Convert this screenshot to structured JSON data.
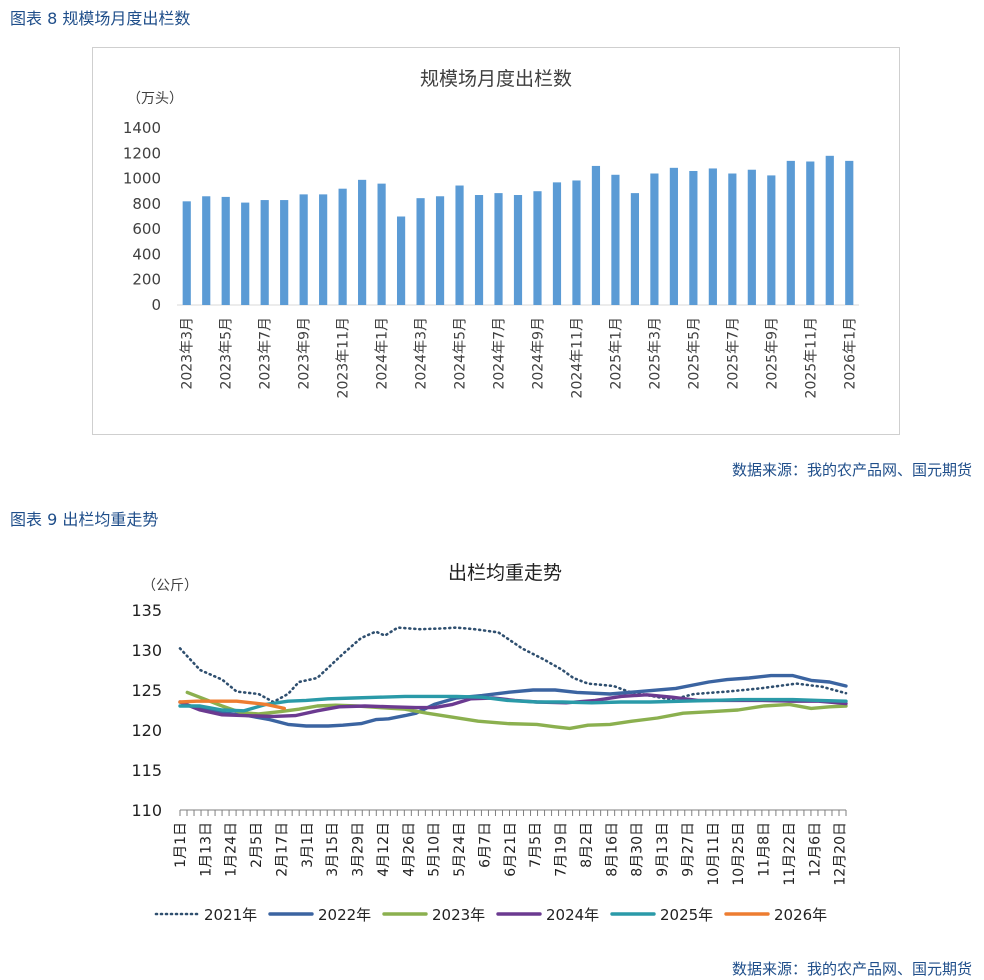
{
  "fig8": {
    "heading": "图表 8  规模场月度出栏数",
    "source": "数据来源：我的农产品网、国元期货"
  },
  "fig9": {
    "heading": "图表 9  出栏均重走势",
    "source": "数据来源：我的农产品网、国元期货"
  },
  "chart_data": [
    {
      "type": "bar",
      "title": "规模场月度出栏数",
      "ylabel": "（万头）",
      "ylim": [
        0,
        1400
      ],
      "yticks": [
        "0",
        "200",
        "400",
        "600",
        "800",
        "1000",
        "1200",
        "1400"
      ],
      "grid": false,
      "legend": "none",
      "color": "#5b9bd5",
      "categories": [
        "2023年3月",
        "2023年4月",
        "2023年5月",
        "2023年6月",
        "2023年7月",
        "2023年8月",
        "2023年9月",
        "2023年10月",
        "2023年11月",
        "2023年12月",
        "2024年1月",
        "2024年2月",
        "2024年3月",
        "2024年4月",
        "2024年5月",
        "2024年6月",
        "2024年7月",
        "2024年8月",
        "2024年9月",
        "2024年10月",
        "2024年11月",
        "2024年12月",
        "2025年1月",
        "2025年2月",
        "2025年3月",
        "2025年4月",
        "2025年5月",
        "2025年6月",
        "2025年7月",
        "2025年8月",
        "2025年9月",
        "2025年10月",
        "2025年11月",
        "2025年12月",
        "2026年1月"
      ],
      "label_categories": [
        "2023年3月",
        "2023年5月",
        "2023年7月",
        "2023年9月",
        "2023年11月",
        "2024年1月",
        "2024年3月",
        "2024年5月",
        "2024年7月",
        "2024年9月",
        "2024年11月",
        "2025年1月",
        "2025年3月",
        "2025年5月",
        "2025年7月",
        "2025年9月",
        "2025年11月",
        "2026年1月"
      ],
      "values": [
        820,
        860,
        855,
        810,
        830,
        830,
        875,
        875,
        920,
        990,
        960,
        700,
        845,
        860,
        945,
        870,
        885,
        870,
        900,
        970,
        985,
        1100,
        1030,
        885,
        1040,
        1085,
        1060,
        1080,
        1040,
        1070,
        1025,
        1140,
        1135,
        1180,
        1140
      ]
    },
    {
      "type": "line",
      "title": "出栏均重走势",
      "ylabel": "（公斤）",
      "ylim": [
        110,
        135
      ],
      "yticks": [
        "110",
        "115",
        "120",
        "125",
        "130",
        "135"
      ],
      "grid": false,
      "legend": "bottom",
      "xticks": [
        "1月1日",
        "1月13日",
        "1月24日",
        "2月5日",
        "2月17日",
        "3月1日",
        "3月15日",
        "3月29日",
        "4月12日",
        "4月26日",
        "5月10日",
        "5月24日",
        "6月7日",
        "6月21日",
        "7月5日",
        "7月19日",
        "8月2日",
        "8月16日",
        "8月30日",
        "9月13日",
        "9月27日",
        "10月11日",
        "10月25日",
        "11月8日",
        "11月22日",
        "12月6日",
        "12月20日"
      ],
      "x_range_days": [
        1,
        365
      ],
      "series": [
        {
          "name": "2021年",
          "color": "#2f4f6f",
          "dashed": true,
          "points": [
            [
              1,
              130.2
            ],
            [
              12,
              127.5
            ],
            [
              24,
              126.3
            ],
            [
              32,
              124.8
            ],
            [
              44,
              124.5
            ],
            [
              52,
              123.5
            ],
            [
              60,
              124.5
            ],
            [
              66,
              126
            ],
            [
              76,
              126.5
            ],
            [
              90,
              129.5
            ],
            [
              100,
              131.5
            ],
            [
              108,
              132.3
            ],
            [
              113,
              131.8
            ],
            [
              120,
              132.8
            ],
            [
              132,
              132.6
            ],
            [
              145,
              132.7
            ],
            [
              152,
              132.8
            ],
            [
              162,
              132.6
            ],
            [
              175,
              132.2
            ],
            [
              188,
              130.2
            ],
            [
              200,
              128.8
            ],
            [
              210,
              127.5
            ],
            [
              216,
              126.5
            ],
            [
              224,
              125.8
            ],
            [
              238,
              125.5
            ],
            [
              246,
              124.8
            ],
            [
              260,
              124.2
            ],
            [
              270,
              123.8
            ],
            [
              282,
              124.5
            ],
            [
              300,
              124.8
            ],
            [
              318,
              125.2
            ],
            [
              338,
              125.8
            ],
            [
              352,
              125.4
            ],
            [
              365,
              124.6
            ]
          ]
        },
        {
          "name": "2022年",
          "color": "#3b64a1",
          "dashed": false,
          "points": [
            [
              3,
              123.2
            ],
            [
              14,
              122.6
            ],
            [
              26,
              122.1
            ],
            [
              38,
              121.8
            ],
            [
              50,
              121.3
            ],
            [
              60,
              120.7
            ],
            [
              70,
              120.5
            ],
            [
              82,
              120.5
            ],
            [
              90,
              120.6
            ],
            [
              100,
              120.8
            ],
            [
              108,
              121.3
            ],
            [
              115,
              121.4
            ],
            [
              124,
              121.8
            ],
            [
              130,
              122.1
            ],
            [
              140,
              123.2
            ],
            [
              152,
              124
            ],
            [
              166,
              124.3
            ],
            [
              180,
              124.7
            ],
            [
              194,
              125
            ],
            [
              206,
              125
            ],
            [
              218,
              124.7
            ],
            [
              236,
              124.5
            ],
            [
              252,
              124.8
            ],
            [
              272,
              125.2
            ],
            [
              290,
              126
            ],
            [
              300,
              126.3
            ],
            [
              312,
              126.5
            ],
            [
              324,
              126.8
            ],
            [
              336,
              126.8
            ],
            [
              346,
              126.2
            ],
            [
              356,
              126
            ],
            [
              365,
              125.5
            ]
          ]
        },
        {
          "name": "2023年",
          "color": "#8bb04f",
          "dashed": false,
          "points": [
            [
              5,
              124.7
            ],
            [
              14,
              123.9
            ],
            [
              24,
              123
            ],
            [
              34,
              122.2
            ],
            [
              44,
              122
            ],
            [
              56,
              122.3
            ],
            [
              66,
              122.6
            ],
            [
              76,
              123
            ],
            [
              86,
              123.1
            ],
            [
              98,
              123
            ],
            [
              110,
              122.8
            ],
            [
              124,
              122.6
            ],
            [
              136,
              122.1
            ],
            [
              150,
              121.6
            ],
            [
              164,
              121.1
            ],
            [
              180,
              120.8
            ],
            [
              196,
              120.7
            ],
            [
              206,
              120.4
            ],
            [
              214,
              120.2
            ],
            [
              224,
              120.6
            ],
            [
              236,
              120.7
            ],
            [
              248,
              121.1
            ],
            [
              262,
              121.5
            ],
            [
              276,
              122.1
            ],
            [
              292,
              122.3
            ],
            [
              306,
              122.5
            ],
            [
              320,
              123
            ],
            [
              334,
              123.2
            ],
            [
              346,
              122.7
            ],
            [
              356,
              122.9
            ],
            [
              365,
              123
            ]
          ]
        },
        {
          "name": "2024年",
          "color": "#6b3a90",
          "dashed": false,
          "points": [
            [
              1,
              123.5
            ],
            [
              12,
              122.5
            ],
            [
              24,
              121.9
            ],
            [
              36,
              121.8
            ],
            [
              52,
              121.7
            ],
            [
              64,
              121.8
            ],
            [
              76,
              122.4
            ],
            [
              88,
              122.9
            ],
            [
              102,
              123
            ],
            [
              116,
              122.9
            ],
            [
              130,
              122.8
            ],
            [
              140,
              122.8
            ],
            [
              150,
              123.2
            ],
            [
              160,
              123.9
            ],
            [
              172,
              124
            ],
            [
              184,
              123.7
            ],
            [
              196,
              123.5
            ],
            [
              212,
              123.4
            ],
            [
              228,
              123.7
            ],
            [
              242,
              124.2
            ],
            [
              256,
              124.4
            ],
            [
              270,
              124.1
            ],
            [
              284,
              123.7
            ],
            [
              300,
              123.7
            ],
            [
              318,
              123.7
            ],
            [
              336,
              123.6
            ],
            [
              350,
              123.6
            ],
            [
              365,
              123.3
            ]
          ]
        },
        {
          "name": "2025年",
          "color": "#2a9aa8",
          "dashed": false,
          "points": [
            [
              1,
              123
            ],
            [
              12,
              123
            ],
            [
              24,
              122.5
            ],
            [
              36,
              122.4
            ],
            [
              48,
              123.2
            ],
            [
              60,
              123.6
            ],
            [
              70,
              123.7
            ],
            [
              82,
              123.9
            ],
            [
              96,
              124
            ],
            [
              110,
              124.1
            ],
            [
              124,
              124.2
            ],
            [
              138,
              124.2
            ],
            [
              152,
              124.2
            ],
            [
              166,
              124.1
            ],
            [
              180,
              123.7
            ],
            [
              196,
              123.5
            ],
            [
              210,
              123.5
            ],
            [
              226,
              123.4
            ],
            [
              242,
              123.5
            ],
            [
              258,
              123.5
            ],
            [
              276,
              123.6
            ],
            [
              292,
              123.7
            ],
            [
              308,
              123.8
            ],
            [
              322,
              123.8
            ],
            [
              336,
              123.8
            ],
            [
              350,
              123.7
            ],
            [
              365,
              123.6
            ]
          ]
        },
        {
          "name": "2026年",
          "color": "#ed7d31",
          "dashed": false,
          "points": [
            [
              1,
              123.5
            ],
            [
              10,
              123.6
            ],
            [
              20,
              123.6
            ],
            [
              32,
              123.6
            ],
            [
              40,
              123.4
            ],
            [
              48,
              123.2
            ],
            [
              58,
              122.7
            ]
          ]
        }
      ]
    }
  ]
}
